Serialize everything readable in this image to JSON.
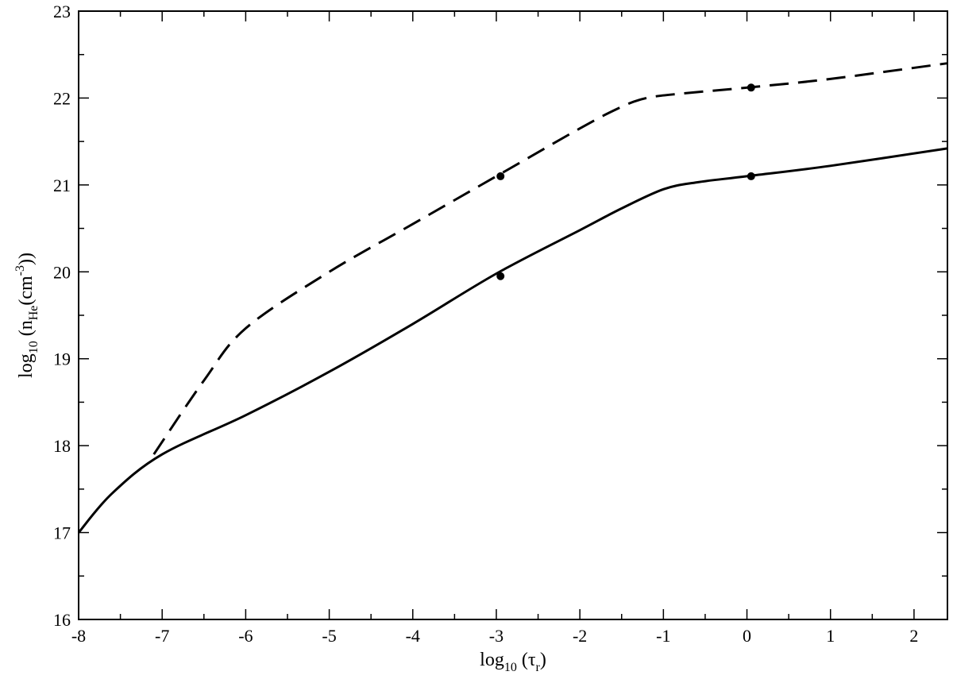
{
  "chart_data": {
    "type": "line",
    "title": "",
    "xlabel": {
      "main": "log",
      "sub": "10",
      "rest_pre": " (τ",
      "rest_sub": "r",
      "rest_post": ")"
    },
    "ylabel": {
      "main": "log",
      "sub": "10",
      "p1": "  (n",
      "p1_sub": "He",
      "p2": "(cm",
      "p2_sup": "-3",
      "p3": "))"
    },
    "xlim": [
      -8,
      2.4
    ],
    "ylim": [
      16,
      23
    ],
    "xticks": [
      -8,
      -7,
      -6,
      -5,
      -4,
      -3,
      -2,
      -1,
      0,
      1,
      2
    ],
    "xtick_labels": [
      "-8",
      "-7",
      "-6",
      "-5",
      "-4",
      "-3",
      "-2",
      "-1",
      "0",
      "1",
      "2"
    ],
    "yticks": [
      16,
      17,
      18,
      19,
      20,
      21,
      22,
      23
    ],
    "ytick_labels": [
      "16",
      "17",
      "18",
      "19",
      "20",
      "21",
      "22",
      "23"
    ],
    "grid": false,
    "series": [
      {
        "style": "dashed",
        "color": "#000000",
        "points": [
          [
            -7.1,
            17.9
          ],
          [
            -6.5,
            18.75
          ],
          [
            -6.0,
            19.35
          ],
          [
            -5.0,
            20.0
          ],
          [
            -4.0,
            20.55
          ],
          [
            -3.0,
            21.1
          ],
          [
            -2.0,
            21.65
          ],
          [
            -1.5,
            21.9
          ],
          [
            -1.2,
            22.0
          ],
          [
            -0.8,
            22.05
          ],
          [
            0.0,
            22.12
          ],
          [
            1.0,
            22.22
          ],
          [
            2.4,
            22.4
          ]
        ]
      },
      {
        "style": "solid",
        "color": "#000000",
        "points": [
          [
            -8.0,
            17.0
          ],
          [
            -7.6,
            17.45
          ],
          [
            -7.0,
            17.9
          ],
          [
            -6.0,
            18.35
          ],
          [
            -5.0,
            18.85
          ],
          [
            -4.0,
            19.4
          ],
          [
            -3.0,
            19.98
          ],
          [
            -2.0,
            20.48
          ],
          [
            -1.5,
            20.73
          ],
          [
            -1.0,
            20.95
          ],
          [
            -0.6,
            21.03
          ],
          [
            0.0,
            21.1
          ],
          [
            1.0,
            21.22
          ],
          [
            2.4,
            21.42
          ]
        ]
      }
    ],
    "markers": [
      {
        "x": -2.95,
        "y": 21.1
      },
      {
        "x": 0.05,
        "y": 22.12
      },
      {
        "x": -2.95,
        "y": 19.95
      },
      {
        "x": 0.05,
        "y": 21.1
      }
    ]
  }
}
